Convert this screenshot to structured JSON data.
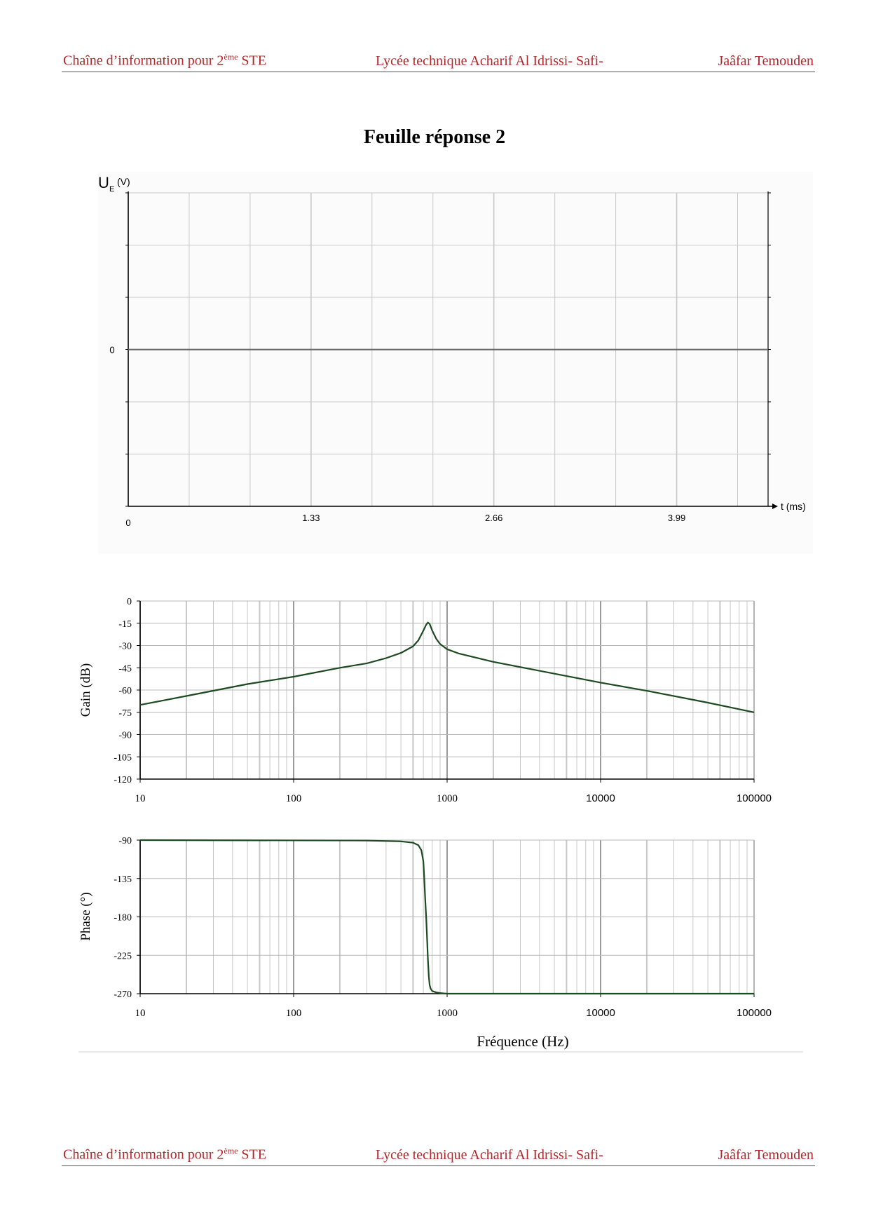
{
  "header": {
    "left_main": "Chaîne d’information pour 2",
    "left_sup": "ème",
    "left_end": " STE",
    "center": "Lycée technique Acharif Al Idrissi- Safi-",
    "right": "Jaâfar Temouden"
  },
  "footer": {
    "left_main": "Chaîne d’information pour 2",
    "left_sup": "ème",
    "left_end": " STE",
    "center": "Lycée technique Acharif Al Idrissi- Safi-",
    "right": "Jaâfar Temouden"
  },
  "title": "Feuille réponse 2",
  "colors": {
    "header_text": "#b3262a",
    "curve": "#1e4a22",
    "grid": "#c8c8c8",
    "axis": "#000000"
  },
  "chart_data": [
    {
      "type": "line",
      "ylabel_main": "U",
      "ylabel_sub": "E",
      "ylabel_unit": "(V)",
      "xlabel": "t (ms)",
      "y_tick_labels": [
        "0"
      ],
      "x_tick_labels": [
        "0",
        "1.33",
        "2.66",
        "3.99"
      ],
      "x_ticks": [
        0,
        1.33,
        2.66,
        3.99
      ],
      "xlim": [
        0,
        4.655
      ],
      "ylim": [
        -3,
        3
      ],
      "grid": true,
      "series": []
    },
    {
      "type": "line",
      "xscale": "log",
      "xlim": [
        10,
        100000
      ],
      "ylim": [
        -120,
        0
      ],
      "ylabel": "Gain (dB)",
      "y_ticks": [
        0,
        -15,
        -30,
        -45,
        -60,
        -75,
        -90,
        -105,
        -120
      ],
      "y_tick_labels": [
        "0",
        "-15",
        "-30",
        "-45",
        "-60",
        "-75",
        "-90",
        "-105",
        "-120"
      ],
      "x_tick_labels": [
        "10",
        "100",
        "1000",
        "10000",
        "100000"
      ],
      "grid": true,
      "series": [
        {
          "x": [
            10,
            20,
            50,
            100,
            200,
            300,
            400,
            500,
            600,
            650,
            700,
            730,
            750,
            770,
            800,
            850,
            900,
            1000,
            1200,
            2000,
            5000,
            10000,
            20000,
            50000,
            100000
          ],
          "y": [
            -70,
            -64,
            -56,
            -51,
            -45,
            -42,
            -38.5,
            -35,
            -30.5,
            -26.5,
            -20,
            -16,
            -14.5,
            -15.5,
            -20,
            -25.5,
            -29,
            -32.5,
            -35.5,
            -41,
            -49,
            -55,
            -60.5,
            -68.5,
            -75
          ]
        }
      ]
    },
    {
      "type": "line",
      "xscale": "log",
      "xlim": [
        10,
        100000
      ],
      "ylim": [
        -270,
        -90
      ],
      "ylabel": "Phase (°)",
      "xlabel": "Fréquence (Hz)",
      "y_ticks": [
        -90,
        -135,
        -180,
        -225,
        -270
      ],
      "y_tick_labels": [
        "-90",
        "-135",
        "-180",
        "-225",
        "-270"
      ],
      "x_tick_labels": [
        "10",
        "100",
        "1000",
        "10000",
        "100000"
      ],
      "grid": true,
      "series": [
        {
          "x": [
            10,
            300,
            500,
            600,
            650,
            680,
            700,
            710,
            720,
            730,
            740,
            750,
            760,
            770,
            780,
            800,
            850,
            900,
            1000,
            100000
          ],
          "y": [
            -90,
            -90.5,
            -91.5,
            -93,
            -96,
            -102,
            -115,
            -135,
            -160,
            -180,
            -205,
            -230,
            -250,
            -260,
            -264,
            -267,
            -268.5,
            -269.3,
            -270,
            -270
          ]
        }
      ]
    }
  ]
}
